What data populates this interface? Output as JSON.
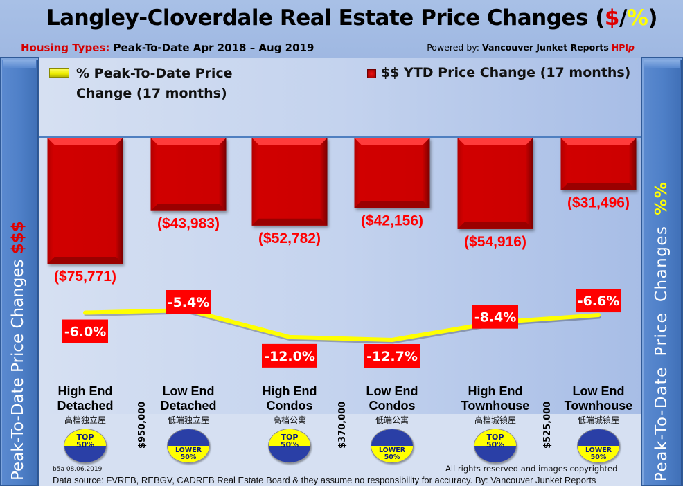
{
  "header": {
    "title_main": "Langley-Cloverdale Real Estate Price Changes (",
    "title_dollar": "$",
    "title_slash": "/",
    "title_pct": "%",
    "title_close": ")",
    "subtitle_label": "Housing Types:",
    "subtitle_range": "Peak-To-Date Apr 2018 – Aug 2019",
    "powered_prefix": "Powered by:",
    "powered_name": "Vancouver Junket Reports",
    "powered_hpi": "HPI",
    "powered_hpi_suffix": "p"
  },
  "side_panels": {
    "left_text": "Peak-To-Date Price Changes",
    "left_symbol": "$$$",
    "right_text": "Peak-To-Date Price Changes",
    "right_symbol": "%%"
  },
  "legend": {
    "line_label": "% Peak-To-Date Price Change (17 months)",
    "bar_label": "$$ YTD Price Change (17 months)"
  },
  "colors": {
    "bar": "#cc0000",
    "line": "#ffff00",
    "label_red": "#ff0000",
    "axis": "#4f7fc0"
  },
  "chart_data": {
    "type": "bar",
    "title": "Langley-Cloverdale Real Estate Price Changes ($/%)",
    "subtitle": "Housing Types: Peak-To-Date Apr 2018 – Aug 2019",
    "xlabel": "",
    "ylabel_left": "Peak-To-Date Price Changes $$$",
    "ylabel_right": "Peak-To-Date Price Changes %%",
    "categories": [
      "High End Detached",
      "Low End Detached",
      "High End Condos",
      "Low End Condos",
      "High End Townhouse",
      "Low End Townhouse"
    ],
    "series": [
      {
        "name": "$$ YTD Price Change (17 months)",
        "type": "bar",
        "values": [
          -75771,
          -43983,
          -52782,
          -42156,
          -54916,
          -31496
        ],
        "labels": [
          "($75,771)",
          "($43,983)",
          "($52,782)",
          "($42,156)",
          "($54,916)",
          "($31,496)"
        ]
      },
      {
        "name": "% Peak-To-Date Price Change (17 months)",
        "type": "line",
        "values": [
          -6.0,
          -5.4,
          -12.0,
          -12.7,
          -8.4,
          -6.6
        ],
        "labels": [
          "-6.0%",
          "-5.4%",
          "-12.0%",
          "-12.7%",
          "-8.4%",
          "-6.6%"
        ]
      }
    ],
    "ylim_bar": [
      -80000,
      0
    ],
    "ylim_line": [
      -14,
      -4
    ],
    "grid": false,
    "legend": "top"
  },
  "categories": [
    {
      "line1": "High End",
      "line2": "Detached",
      "cn": "高档独立屋",
      "badge": "top",
      "badge_l1": "TOP",
      "badge_l2": "50%"
    },
    {
      "line1": "Low End",
      "line2": "Detached",
      "cn": "低端独立屋",
      "badge": "lower",
      "badge_l1": "LOWER",
      "badge_l2": "50%"
    },
    {
      "line1": "High End",
      "line2": "Condos",
      "cn": "高档公寓",
      "badge": "top",
      "badge_l1": "TOP",
      "badge_l2": "50%"
    },
    {
      "line1": "Low End",
      "line2": "Condos",
      "cn": "低端公寓",
      "badge": "lower",
      "badge_l1": "LOWER",
      "badge_l2": "50%"
    },
    {
      "line1": "High End",
      "line2": "Townhouse",
      "cn": "高档城镇屋",
      "badge": "top",
      "badge_l1": "TOP",
      "badge_l2": "50%"
    },
    {
      "line1": "Low End",
      "line2": "Townhouse",
      "cn": "低端城镇屋",
      "badge": "lower",
      "badge_l1": "LOWER",
      "badge_l2": "50%"
    }
  ],
  "thresholds": [
    "$950,000",
    "$370,000",
    "$525,000"
  ],
  "footer": {
    "code": "b5a 08.06.2019",
    "rights": "All rights reserved and  images copyrighted",
    "source": "Data source: FVREB, REBGV, CADREB Real Estate Board & they assume no responsibility for accuracy. By: Vancouver Junket Reports"
  }
}
